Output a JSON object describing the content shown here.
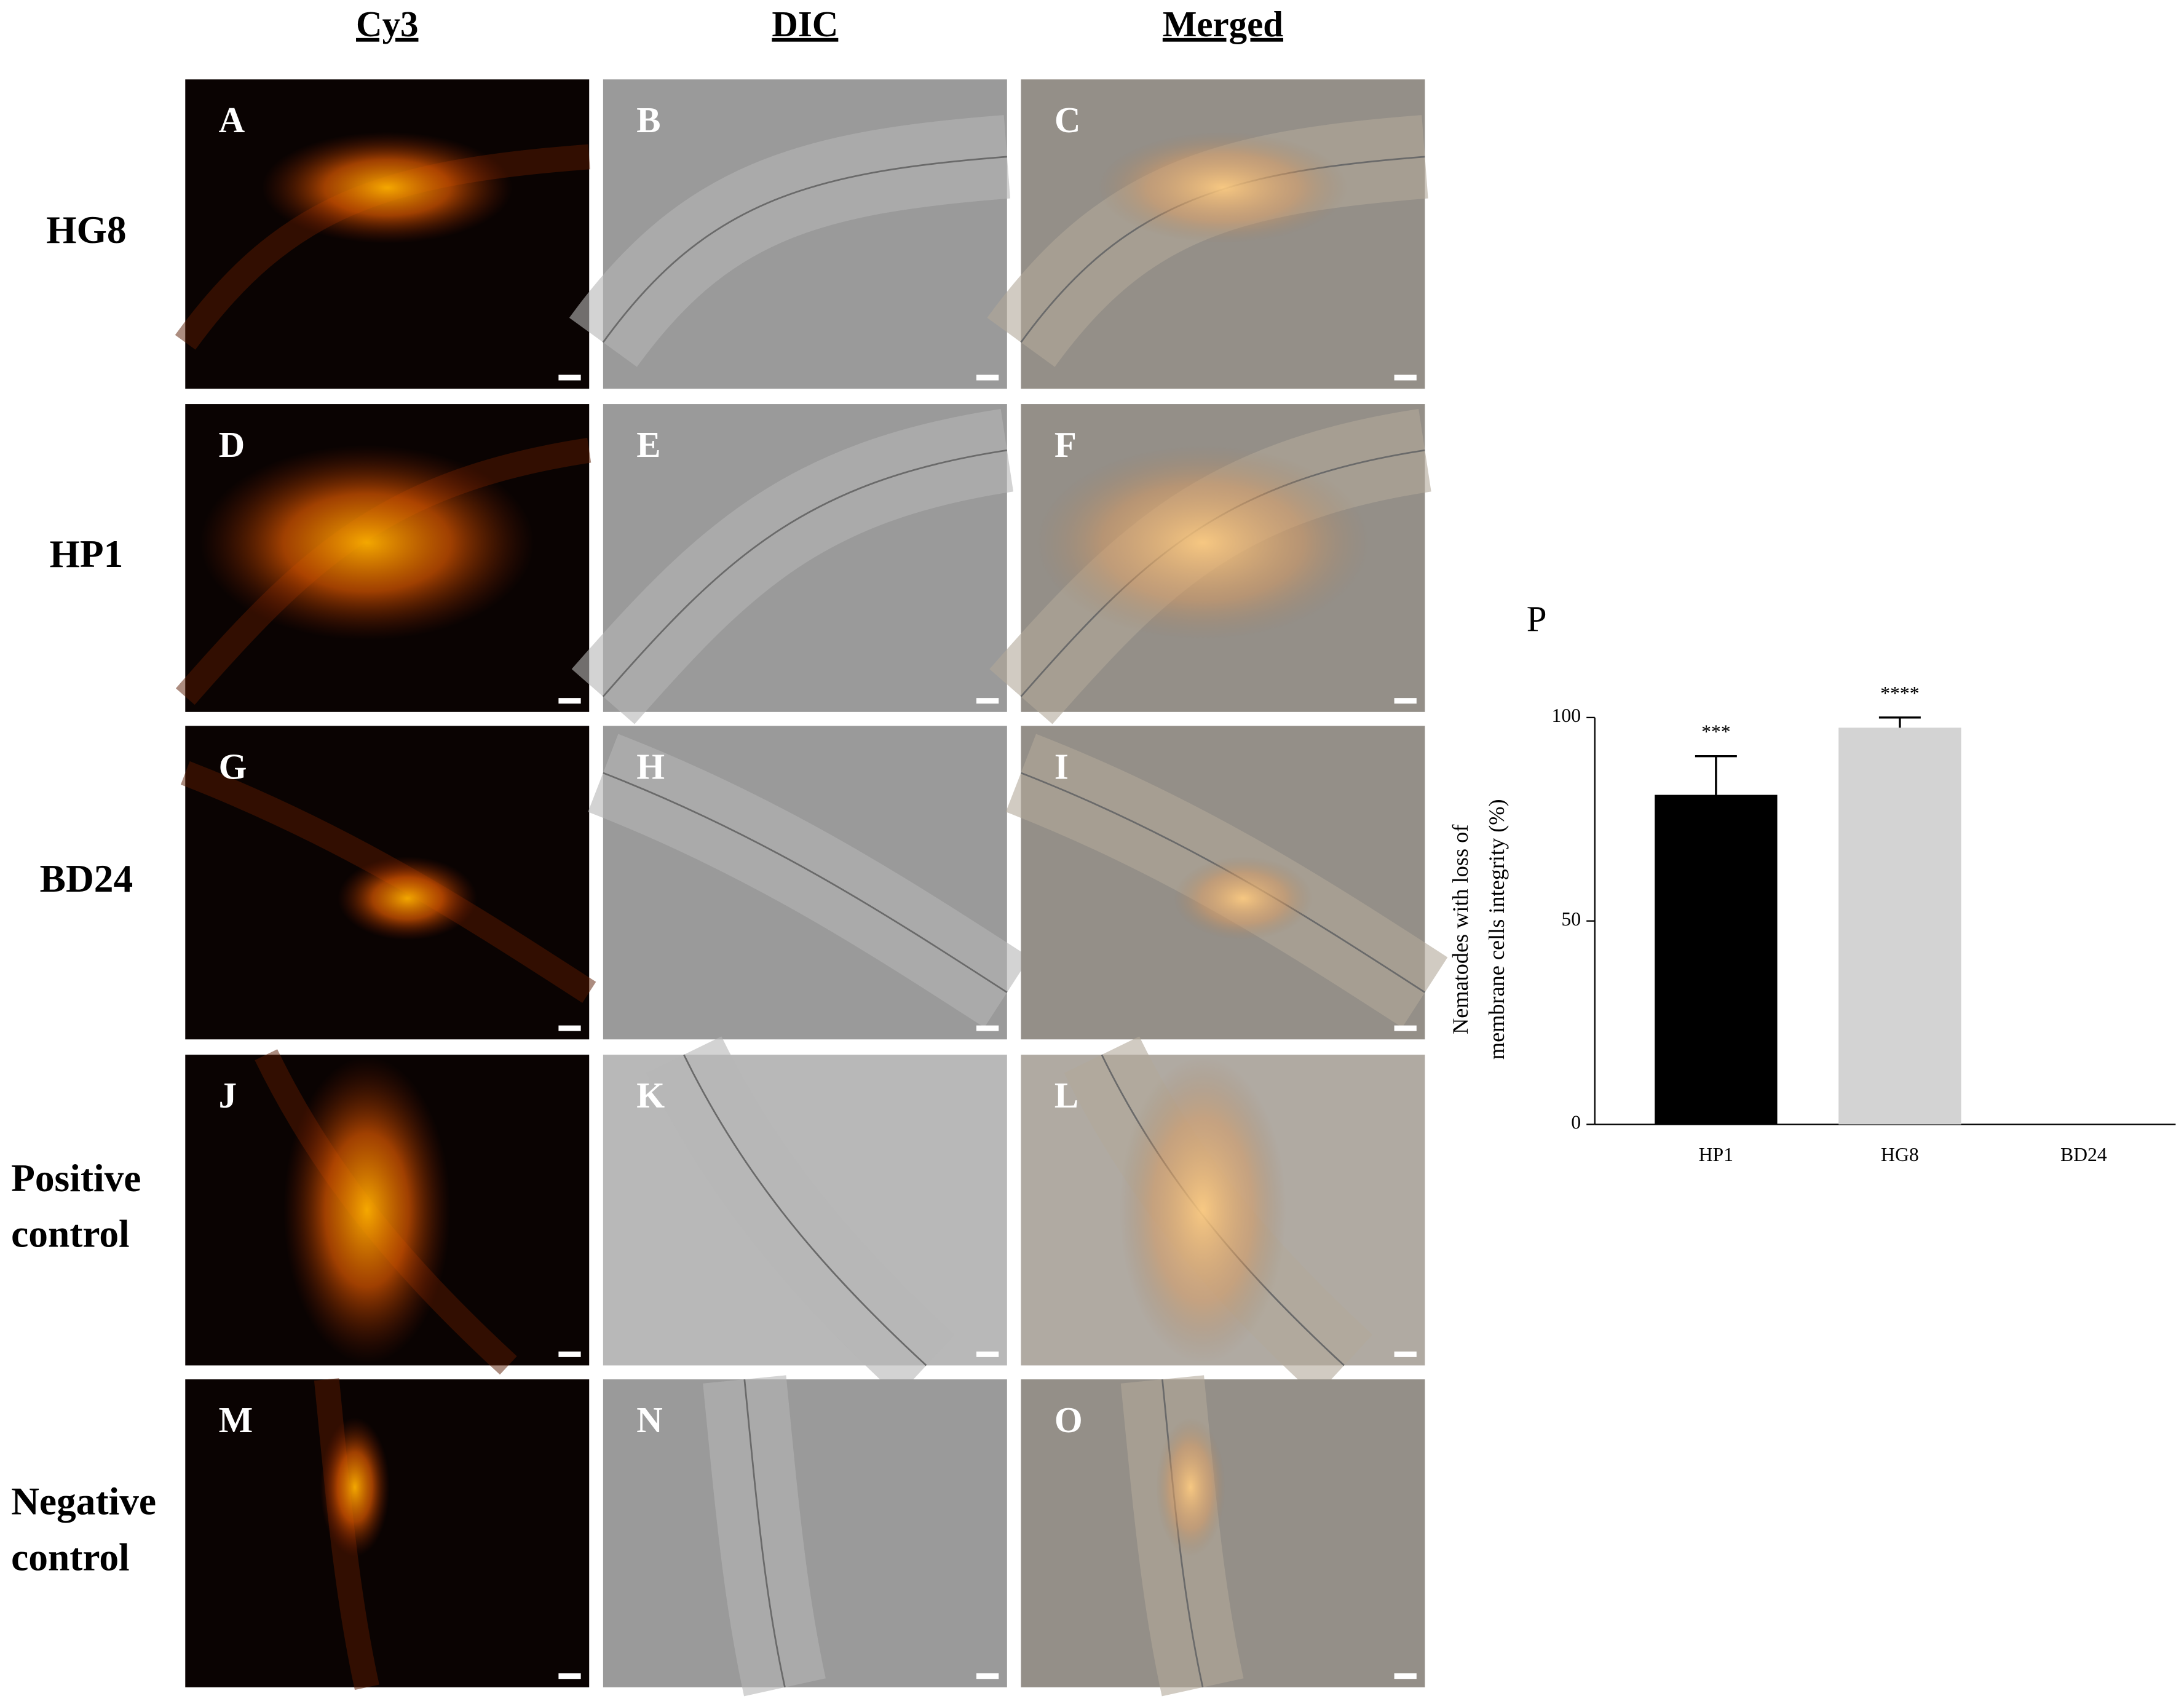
{
  "figure": {
    "columns": [
      "Cy3",
      "DIC",
      "Merged"
    ],
    "rows": [
      [
        "HG8"
      ],
      [
        "HP1"
      ],
      [
        "BD24"
      ],
      [
        "Positive",
        "control"
      ],
      [
        "Negative",
        "control"
      ]
    ],
    "panels": [
      "A",
      "B",
      "C",
      "D",
      "E",
      "F",
      "G",
      "H",
      "I",
      "J",
      "K",
      "L",
      "M",
      "N",
      "O"
    ]
  },
  "chart_data": {
    "type": "bar",
    "panel_label": "P",
    "y_label": [
      "Nematodes with loss of",
      "membrane cells integrity (%)"
    ],
    "categories": [
      "HP1",
      "HG8",
      "BD24"
    ],
    "values": [
      81,
      97.5,
      0
    ],
    "errors": [
      9.5,
      2.5,
      null
    ],
    "annotations": [
      "***",
      "****",
      null
    ],
    "colors": [
      "#000000",
      "#d3d3d3",
      "#d3d3d3"
    ],
    "ylim": [
      0,
      100
    ],
    "yticks": [
      0,
      50,
      100
    ]
  }
}
